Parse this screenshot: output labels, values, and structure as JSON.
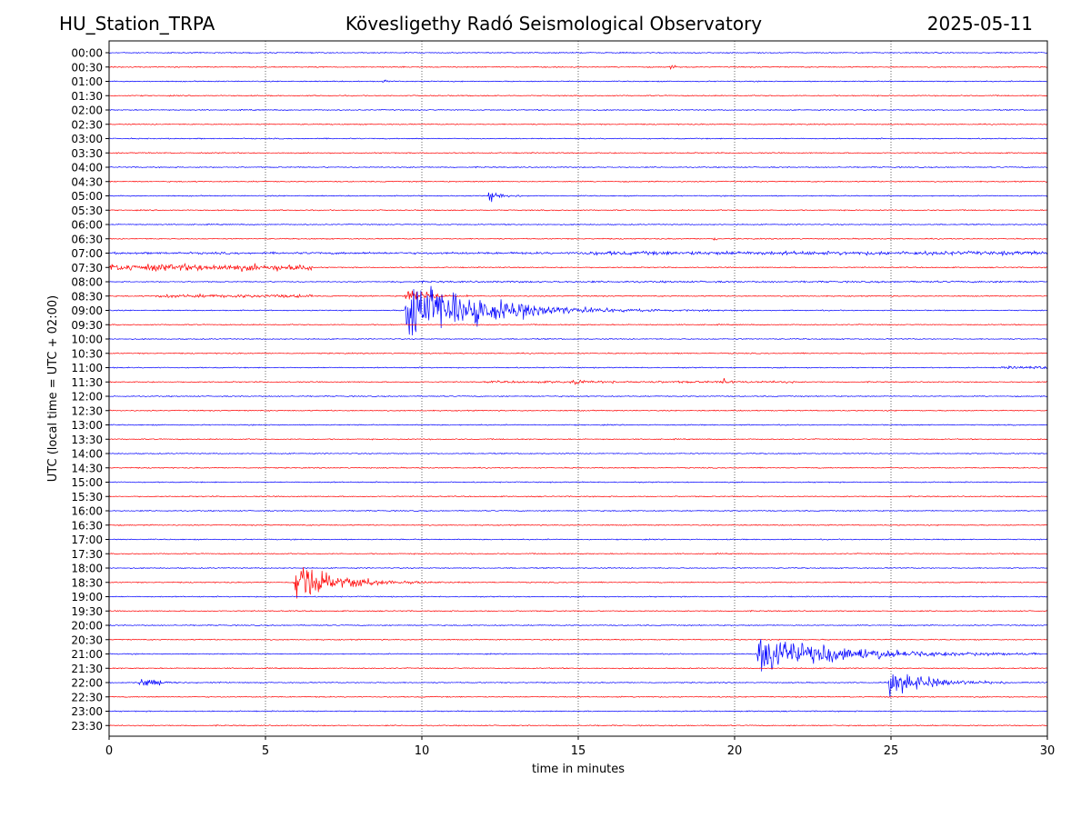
{
  "header": {
    "station": "HU_Station_TRPA",
    "observatory": "Kövesligethy Radó Seismological Observatory",
    "date": "2025-05-11"
  },
  "chart_data": {
    "type": "line",
    "title": "Kövesligethy Radó Seismological Observatory",
    "xlabel": "time in minutes",
    "ylabel": "UTC (local time = UTC + 02:00)",
    "xlim": [
      0,
      30
    ],
    "xticks": [
      0,
      5,
      10,
      15,
      20,
      25,
      30
    ],
    "vertical_gridlines_at": [
      5,
      10,
      15,
      20,
      25
    ],
    "grid": "vertical dotted",
    "trace_colors": [
      "#0000ff",
      "#ff0000"
    ],
    "row_labels": [
      "00:00",
      "00:30",
      "01:00",
      "01:30",
      "02:00",
      "02:30",
      "03:00",
      "03:30",
      "04:00",
      "04:30",
      "05:00",
      "05:30",
      "06:00",
      "06:30",
      "07:00",
      "07:30",
      "08:00",
      "08:30",
      "09:00",
      "09:30",
      "10:00",
      "10:30",
      "11:00",
      "11:30",
      "12:00",
      "12:30",
      "13:00",
      "13:30",
      "14:00",
      "14:30",
      "15:00",
      "15:30",
      "16:00",
      "16:30",
      "17:00",
      "17:30",
      "18:00",
      "18:30",
      "19:00",
      "19:30",
      "20:00",
      "20:30",
      "21:00",
      "21:30",
      "22:00",
      "22:30",
      "23:00",
      "23:30"
    ],
    "background_noise": 0.8,
    "row_noise_segments": [
      {
        "row": "07:00",
        "from": 0,
        "to": 15,
        "level": 1.6
      },
      {
        "row": "07:00",
        "from": 15,
        "to": 30,
        "level": 2.8
      },
      {
        "row": "07:30",
        "from": 0,
        "to": 6.5,
        "level": 5
      },
      {
        "row": "08:00",
        "from": 9,
        "to": 30,
        "level": 1.3
      },
      {
        "row": "08:30",
        "from": 1.5,
        "to": 6.5,
        "level": 2.5
      },
      {
        "row": "11:30",
        "from": 12,
        "to": 22,
        "level": 1.6
      },
      {
        "row": "11:00",
        "from": 28.5,
        "to": 30,
        "level": 2
      }
    ],
    "events": [
      {
        "row": "00:30",
        "minute": 17.9,
        "amplitude": 4,
        "duration": 0.6
      },
      {
        "row": "01:00",
        "minute": 8.7,
        "amplitude": 3,
        "duration": 0.7
      },
      {
        "row": "05:00",
        "minute": 12.1,
        "amplitude": 10,
        "duration": 1.5
      },
      {
        "row": "06:30",
        "minute": 19.3,
        "amplitude": 5,
        "duration": 0.4
      },
      {
        "row": "09:00",
        "minute": 9.45,
        "amplitude": 58,
        "duration": 7
      },
      {
        "row": "08:30",
        "minute": 9.45,
        "amplitude": 18,
        "duration": 2
      },
      {
        "row": "11:30",
        "minute": 14.8,
        "amplitude": 5,
        "duration": 1.2
      },
      {
        "row": "11:30",
        "minute": 19.6,
        "amplitude": 8,
        "duration": 0.5
      },
      {
        "row": "18:30",
        "minute": 5.9,
        "amplitude": 30,
        "duration": 4
      },
      {
        "row": "21:00",
        "minute": 20.7,
        "amplitude": 32,
        "duration": 8
      },
      {
        "row": "22:00",
        "minute": 0.95,
        "amplitude": 9,
        "duration": 2
      },
      {
        "row": "22:00",
        "minute": 3.5,
        "amplitude": 4,
        "duration": 0.5
      },
      {
        "row": "22:00",
        "minute": 24.9,
        "amplitude": 20,
        "duration": 4
      }
    ]
  }
}
